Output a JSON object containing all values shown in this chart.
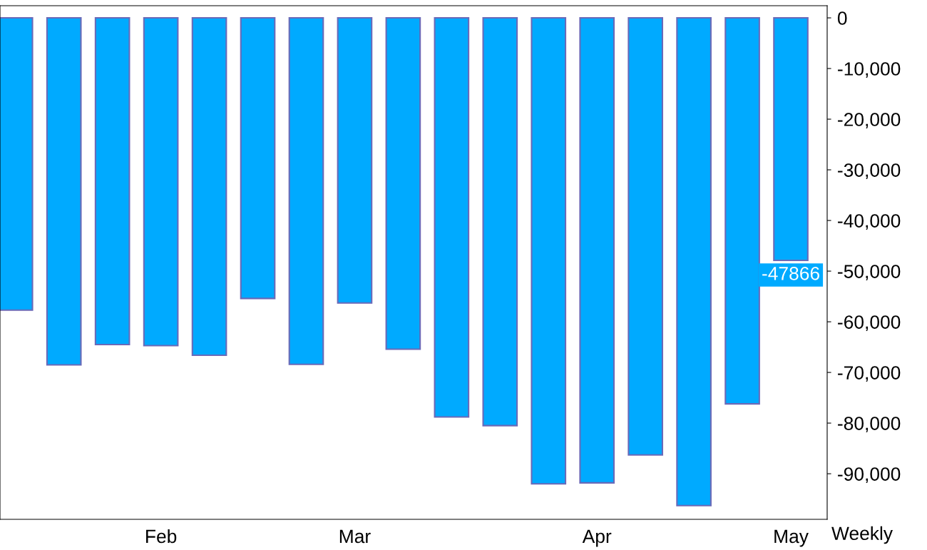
{
  "chart_data": {
    "type": "bar",
    "categories": [
      null,
      null,
      null,
      "Feb",
      null,
      null,
      null,
      "Mar",
      null,
      null,
      null,
      null,
      "Apr",
      null,
      null,
      null,
      "May"
    ],
    "values": [
      -57700,
      -68500,
      -64500,
      -64700,
      -66600,
      -55400,
      -68400,
      -56300,
      -65400,
      -78800,
      -80500,
      -92000,
      -91800,
      -86300,
      -96300,
      -76200,
      -47866
    ],
    "value_labels": [
      null,
      null,
      null,
      null,
      null,
      null,
      null,
      null,
      null,
      null,
      null,
      null,
      null,
      null,
      null,
      null,
      "-47866"
    ],
    "color": "#00aaff",
    "ylim": [
      -99000,
      2400
    ],
    "yticks": [
      {
        "value": 0,
        "label": "0"
      },
      {
        "value": -10000,
        "label": "-10,000"
      },
      {
        "value": -20000,
        "label": "-20,000"
      },
      {
        "value": -30000,
        "label": "-30,000"
      },
      {
        "value": -40000,
        "label": "-40,000"
      },
      {
        "value": -50000,
        "label": "-50,000"
      },
      {
        "value": -60000,
        "label": "-60,000"
      },
      {
        "value": -70000,
        "label": "-70,000"
      },
      {
        "value": -80000,
        "label": "-80,000"
      },
      {
        "value": -90000,
        "label": "-90,000"
      }
    ],
    "annotations": [
      "Weekly"
    ],
    "grid": false,
    "legend": false
  }
}
